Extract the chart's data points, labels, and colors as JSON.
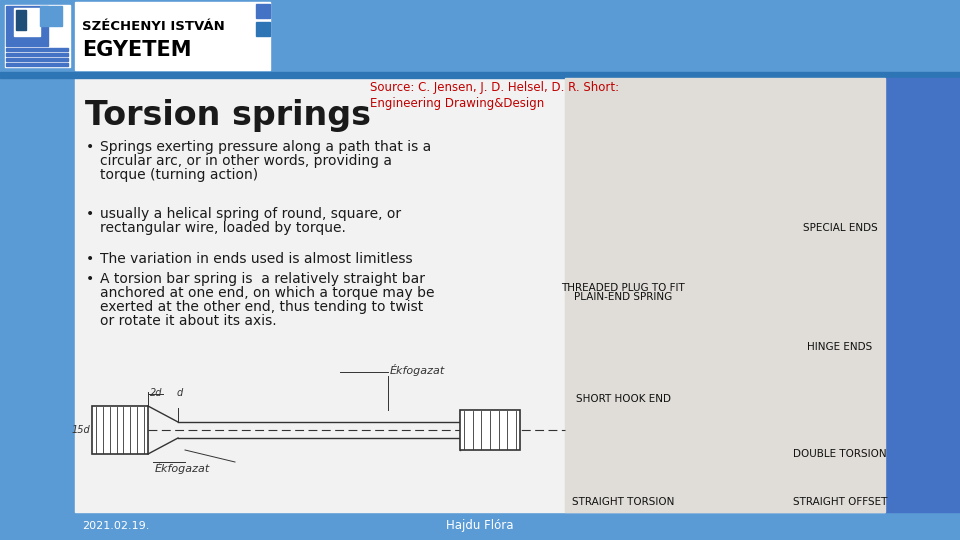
{
  "title": "Torsion springs",
  "source_line1": "Source: C. Jensen, J. D. Helsel, D. R. Short:",
  "source_line2": "Engineering Drawing&Design",
  "bullets": [
    "Springs exerting pressure along a path that is a circular arc, or in other words, providing a torque (turning action)",
    "usually a helical spring of round, square, or rectangular wire, loaded by torque.",
    "The variation in ends used is almost limitless",
    "A torsion bar spring is  a relatively straight bar anchored at one end, on which a torque may be exerted at the other end, thus tending to twist or rotate it about its axis."
  ],
  "footer_left": "2021.02.19.",
  "footer_center": "Hajdu Flóra",
  "slide_bg": "#f2f2f2",
  "header_blue": "#5b9bd5",
  "header_stripe": "#2e75b6",
  "left_bar_color": "#5b9bd5",
  "bottom_bar_color": "#5b9bd5",
  "content_bg": "#f2f2f2",
  "right_panel_bg": "#e8e8e8",
  "title_color": "#1a1a1a",
  "source_color": "#c00000",
  "bullet_color": "#1a1a1a",
  "footer_text_color": "#444444",
  "blue_sq": "#4472c4",
  "right_blue_accent": "#4472c4",
  "sketch_line": "#333333",
  "right_labels": [
    [
      "THREADED PLUG TO FIT\nPLAIN-END SPRING",
      625,
      285
    ],
    [
      "SPECIAL ENDS",
      845,
      222
    ],
    [
      "HINGE ENDS",
      845,
      340
    ],
    [
      "SHORT HOOK END",
      625,
      395
    ],
    [
      "DOUBLE TORSION",
      845,
      450
    ],
    [
      "STRAIGHT TORSION",
      625,
      500
    ],
    [
      "STRAIGHT OFFSET",
      845,
      500
    ]
  ]
}
